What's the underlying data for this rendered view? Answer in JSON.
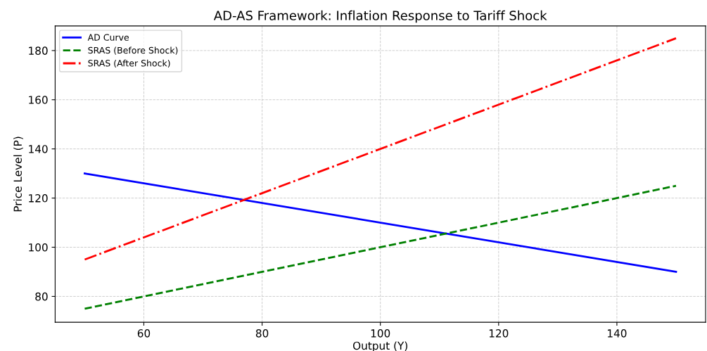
{
  "chart_data": {
    "type": "line",
    "title": "AD-AS Framework: Inflation Response to Tariff Shock",
    "xlabel": "Output (Y)",
    "ylabel": "Price Level (P)",
    "x": [
      50,
      150
    ],
    "series": [
      {
        "name": "AD Curve",
        "color": "#0000ff",
        "values": [
          130,
          90
        ],
        "line_style": "solid"
      },
      {
        "name": "SRAS (Before Shock)",
        "color": "#008000",
        "values": [
          75,
          125
        ],
        "line_style": "dashed"
      },
      {
        "name": "SRAS (After Shock)",
        "color": "#ff0000",
        "values": [
          95,
          185
        ],
        "line_style": "dashdot"
      }
    ],
    "xlim": [
      45,
      155
    ],
    "ylim": [
      69.5,
      190
    ],
    "xticks": [
      60,
      80,
      100,
      120,
      140
    ],
    "yticks": [
      80,
      100,
      120,
      140,
      160,
      180
    ],
    "grid": true,
    "legend": "top left",
    "marker": "none"
  }
}
